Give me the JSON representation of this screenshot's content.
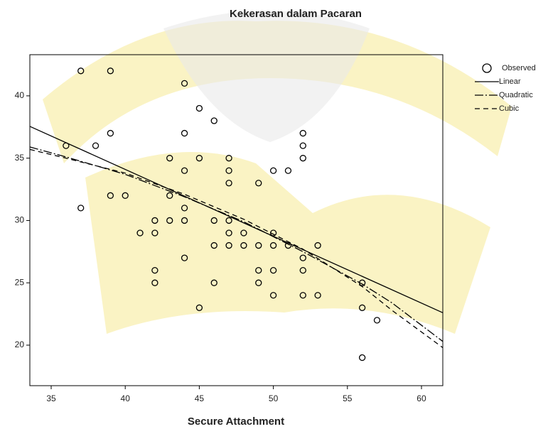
{
  "chart_data": {
    "type": "scatter",
    "title": "Kekerasan dalam Pacaran",
    "x_label": "Secure Attachment",
    "xlim": [
      33.56,
      61.44
    ],
    "ylim": [
      16.75,
      43.3
    ],
    "xticks": [
      35,
      40,
      45,
      50,
      55,
      60
    ],
    "yticks": [
      20,
      25,
      30,
      35,
      40
    ],
    "grid": false,
    "legend": "right",
    "series": [
      {
        "name": "Observed",
        "type": "scatter",
        "color": "#000000",
        "x": [
          37,
          39,
          44,
          45,
          46,
          39,
          44,
          52,
          36,
          38,
          52,
          43,
          45,
          47,
          52,
          44,
          47,
          50,
          51,
          47,
          49,
          39,
          40,
          43,
          37,
          44,
          42,
          43,
          44,
          46,
          47,
          41,
          42,
          47,
          48,
          50,
          46,
          47,
          48,
          49,
          50,
          51,
          53,
          44,
          52,
          42,
          49,
          50,
          52,
          42,
          46,
          49,
          56,
          45,
          56,
          50,
          52,
          53,
          57,
          56
        ],
        "values": [
          42,
          42,
          41,
          39,
          38,
          37,
          37,
          37,
          36,
          36,
          36,
          35,
          35,
          35,
          35,
          34,
          34,
          34,
          34,
          33,
          33,
          32,
          32,
          32,
          31,
          31,
          30,
          30,
          30,
          30,
          30,
          29,
          29,
          29,
          29,
          29,
          28,
          28,
          28,
          28,
          28,
          28,
          28,
          27,
          27,
          26,
          26,
          26,
          26,
          25,
          25,
          25,
          25,
          23,
          23,
          24,
          24,
          24,
          22,
          19
        ]
      },
      {
        "name": "Linear",
        "type": "line",
        "color": "#000000",
        "dash": "none",
        "x": [
          33.56,
          61.44
        ],
        "values": [
          37.55,
          22.6
        ]
      },
      {
        "name": "Quadratic",
        "type": "line",
        "color": "#000000",
        "dash": "12 3 2 3",
        "x": [
          33.56,
          36,
          40,
          44,
          48,
          52,
          56,
          58,
          61.44
        ],
        "values": [
          35.9,
          35.1,
          33.7,
          31.9,
          29.9,
          27.5,
          24.9,
          23.4,
          20.3
        ]
      },
      {
        "name": "Cubic",
        "type": "line",
        "color": "#000000",
        "dash": "7 5",
        "x": [
          33.56,
          36,
          40,
          44,
          48,
          52,
          56,
          58,
          61.44
        ],
        "values": [
          35.7,
          35.0,
          33.8,
          32.1,
          30.1,
          27.7,
          24.7,
          22.8,
          19.8
        ]
      }
    ]
  }
}
